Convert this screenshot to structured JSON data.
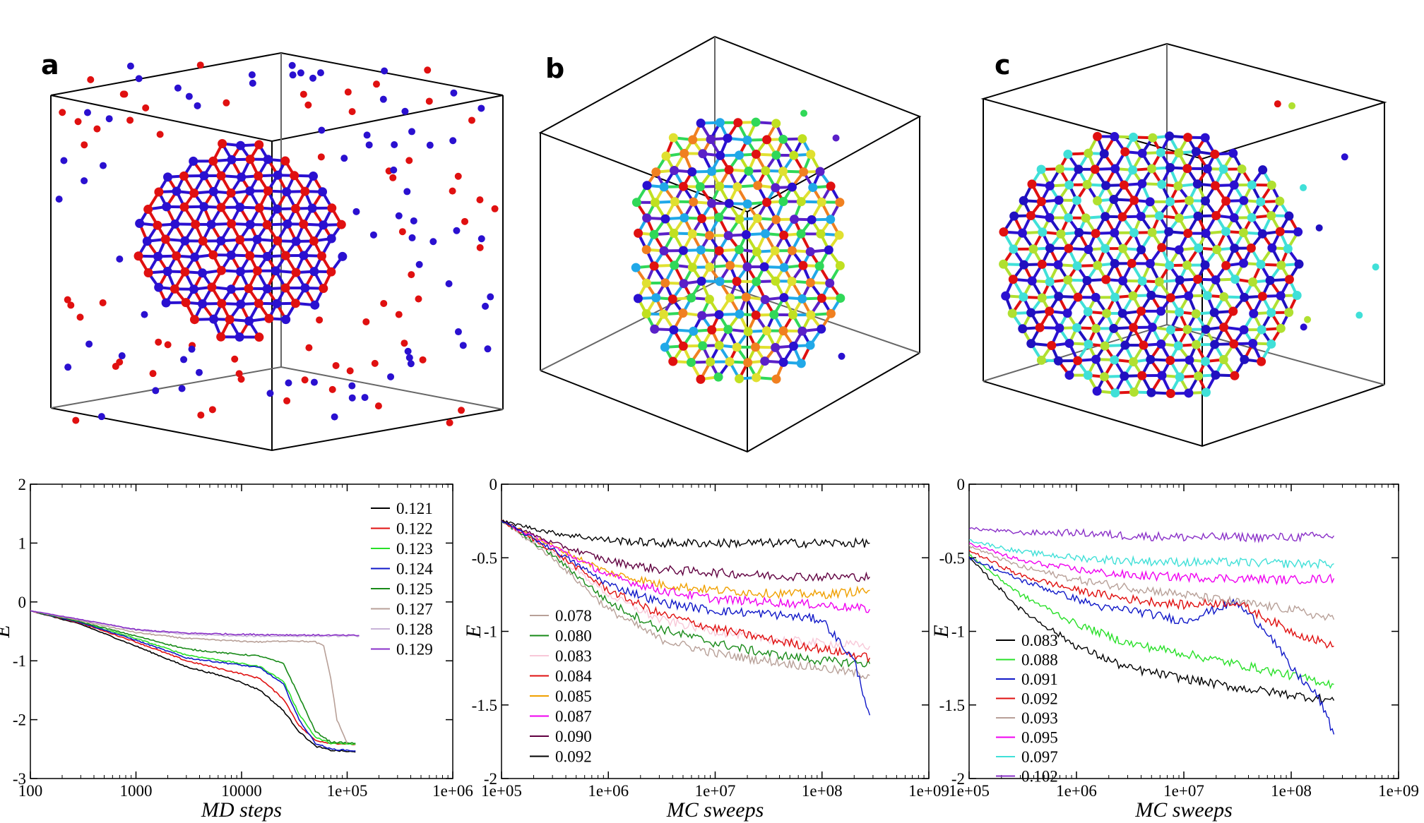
{
  "panel_labels": [
    "a",
    "b",
    "c"
  ],
  "colors": {
    "red": "#e01010",
    "blue": "#2a10d0",
    "green": "#28e028",
    "darkblue": "#1018c8",
    "darkgreen": "#188a18",
    "tan": "#b8a098",
    "lavender": "#c8b4d8",
    "purple": "#8a30c8",
    "black": "#000000",
    "orange": "#f0a000",
    "magenta": "#f000f0",
    "maroon": "#600040",
    "cyan": "#40e0d8",
    "pink": "#f8c8d8"
  },
  "chart_data": [
    {
      "type": "line",
      "xlabel": "MD steps",
      "ylabel": "E",
      "xscale": "log",
      "xlim": [
        100,
        1000000
      ],
      "ylim": [
        -3,
        2
      ],
      "xticks": [
        "100",
        "1000",
        "10000",
        "1e+05",
        "1e+06"
      ],
      "yticks": [
        "-3",
        "-2",
        "-1",
        "0",
        "1",
        "2"
      ],
      "legend_position": "top-right",
      "series": [
        {
          "name": "0.121",
          "color": "#000000",
          "x": [
            100,
            300,
            1000,
            3000,
            8000,
            15000,
            25000,
            35000,
            50000,
            70000,
            120000
          ],
          "y": [
            -0.15,
            -0.38,
            -0.75,
            -1.1,
            -1.3,
            -1.5,
            -1.85,
            -2.2,
            -2.45,
            -2.52,
            -2.55
          ]
        },
        {
          "name": "0.122",
          "color": "#e01010",
          "x": [
            100,
            300,
            1000,
            3000,
            8000,
            15000,
            25000,
            35000,
            50000,
            70000,
            120000
          ],
          "y": [
            -0.15,
            -0.36,
            -0.68,
            -1.0,
            -1.18,
            -1.3,
            -1.65,
            -2.1,
            -2.35,
            -2.4,
            -2.42
          ]
        },
        {
          "name": "0.123",
          "color": "#28e028",
          "x": [
            100,
            300,
            1000,
            3000,
            8000,
            15000,
            25000,
            35000,
            50000,
            70000,
            120000
          ],
          "y": [
            -0.15,
            -0.35,
            -0.62,
            -0.9,
            -1.02,
            -1.1,
            -1.35,
            -1.9,
            -2.3,
            -2.4,
            -2.42
          ]
        },
        {
          "name": "0.124",
          "color": "#1018c8",
          "x": [
            100,
            300,
            1000,
            3000,
            8000,
            15000,
            25000,
            35000,
            50000,
            70000,
            120000
          ],
          "y": [
            -0.15,
            -0.35,
            -0.65,
            -0.95,
            -1.05,
            -1.12,
            -1.4,
            -2.0,
            -2.4,
            -2.5,
            -2.53
          ]
        },
        {
          "name": "0.125",
          "color": "#188a18",
          "x": [
            100,
            300,
            1000,
            3000,
            8000,
            15000,
            25000,
            35000,
            50000,
            70000,
            120000
          ],
          "y": [
            -0.15,
            -0.34,
            -0.58,
            -0.8,
            -0.88,
            -0.92,
            -1.05,
            -1.6,
            -2.2,
            -2.38,
            -2.4
          ]
        },
        {
          "name": "0.127",
          "color": "#b8a098",
          "x": [
            100,
            300,
            1000,
            3000,
            8000,
            15000,
            30000,
            50000,
            60000,
            70000,
            80000,
            100000
          ],
          "y": [
            -0.15,
            -0.32,
            -0.52,
            -0.62,
            -0.66,
            -0.68,
            -0.66,
            -0.68,
            -0.75,
            -1.3,
            -2.0,
            -2.4
          ]
        },
        {
          "name": "0.128",
          "color": "#c8b4d8",
          "x": [
            100,
            300,
            1000,
            3000,
            10000,
            30000,
            130000
          ],
          "y": [
            -0.15,
            -0.3,
            -0.48,
            -0.55,
            -0.58,
            -0.58,
            -0.58
          ]
        },
        {
          "name": "0.129",
          "color": "#8a30c8",
          "x": [
            100,
            300,
            1000,
            3000,
            10000,
            30000,
            130000
          ],
          "y": [
            -0.15,
            -0.3,
            -0.47,
            -0.53,
            -0.55,
            -0.56,
            -0.57
          ]
        }
      ]
    },
    {
      "type": "line",
      "xlabel": "MC sweeps",
      "ylabel": "E",
      "xscale": "log",
      "xlim": [
        100000,
        1000000000
      ],
      "ylim": [
        -2,
        0
      ],
      "xticks": [
        "1e+05",
        "1e+06",
        "1e+07",
        "1e+08",
        "1e+09"
      ],
      "yticks": [
        "-2",
        "-1.5",
        "-1",
        "-0.5",
        "0"
      ],
      "legend_position": "bottom-left",
      "series": [
        {
          "name": "0.078",
          "color": "#b8a098",
          "x": [
            100000,
            300000,
            1000000,
            3000000,
            10000000,
            30000000,
            100000000,
            280000000
          ],
          "y": [
            -0.25,
            -0.5,
            -0.85,
            -1.05,
            -1.15,
            -1.2,
            -1.25,
            -1.3
          ]
        },
        {
          "name": "0.080",
          "color": "#188a18",
          "x": [
            100000,
            300000,
            1000000,
            3000000,
            10000000,
            30000000,
            100000000,
            280000000
          ],
          "y": [
            -0.25,
            -0.48,
            -0.8,
            -0.98,
            -1.08,
            -1.15,
            -1.2,
            -1.22
          ]
        },
        {
          "name": "0.083",
          "color": "#f8c8d8",
          "x": [
            100000,
            300000,
            1000000,
            3000000,
            10000000,
            30000000,
            100000000,
            280000000
          ],
          "y": [
            -0.25,
            -0.46,
            -0.75,
            -0.92,
            -1.0,
            -1.05,
            -1.08,
            -1.1
          ]
        },
        {
          "name": "0.084",
          "color": "#e01010",
          "x": [
            100000,
            300000,
            1000000,
            3000000,
            10000000,
            30000000,
            100000000,
            280000000
          ],
          "y": [
            -0.25,
            -0.45,
            -0.72,
            -0.88,
            -0.98,
            -1.05,
            -1.12,
            -1.18
          ]
        },
        {
          "name": "0.085",
          "color": "#f0a000",
          "x": [
            100000,
            300000,
            1000000,
            3000000,
            10000000,
            30000000,
            100000000,
            280000000
          ],
          "y": [
            -0.25,
            -0.42,
            -0.6,
            -0.68,
            -0.72,
            -0.74,
            -0.75,
            -0.72
          ]
        },
        {
          "name": "0.087",
          "color": "#f000f0",
          "x": [
            100000,
            300000,
            1000000,
            3000000,
            10000000,
            30000000,
            100000000,
            280000000
          ],
          "y": [
            -0.25,
            -0.42,
            -0.62,
            -0.72,
            -0.78,
            -0.8,
            -0.82,
            -0.85
          ]
        },
        {
          "name": "0.090",
          "color": "#600040",
          "x": [
            100000,
            300000,
            1000000,
            3000000,
            10000000,
            30000000,
            100000000,
            280000000
          ],
          "y": [
            -0.25,
            -0.4,
            -0.52,
            -0.58,
            -0.6,
            -0.62,
            -0.63,
            -0.63
          ]
        },
        {
          "name": "0.092",
          "color": "#000000",
          "x": [
            100000,
            300000,
            1000000,
            3000000,
            10000000,
            30000000,
            100000000,
            280000000
          ],
          "y": [
            -0.25,
            -0.33,
            -0.38,
            -0.4,
            -0.4,
            -0.4,
            -0.4,
            -0.4
          ]
        },
        {
          "name": "",
          "color": "#1018c8",
          "x": [
            100000,
            300000,
            1000000,
            3000000,
            10000000,
            30000000,
            100000000,
            200000000,
            280000000
          ],
          "y": [
            -0.25,
            -0.44,
            -0.68,
            -0.8,
            -0.86,
            -0.88,
            -0.92,
            -1.2,
            -1.57
          ]
        }
      ]
    },
    {
      "type": "line",
      "xlabel": "MC sweeps",
      "ylabel": "E",
      "xscale": "log",
      "xlim": [
        100000,
        1000000000
      ],
      "ylim": [
        -2,
        0
      ],
      "xticks": [
        "1e+05",
        "1e+06",
        "1e+07",
        "1e+08",
        "1e+09"
      ],
      "yticks": [
        "-2",
        "-1.5",
        "-1",
        "-0.5",
        "0"
      ],
      "legend_position": "bottom-left",
      "series": [
        {
          "name": "0.083",
          "color": "#000000",
          "x": [
            100000,
            300000,
            1000000,
            3000000,
            10000000,
            30000000,
            100000000,
            250000000
          ],
          "y": [
            -0.5,
            -0.85,
            -1.1,
            -1.25,
            -1.32,
            -1.38,
            -1.43,
            -1.47
          ]
        },
        {
          "name": "0.088",
          "color": "#28e028",
          "x": [
            100000,
            300000,
            1000000,
            3000000,
            10000000,
            30000000,
            100000000,
            250000000
          ],
          "y": [
            -0.48,
            -0.75,
            -0.95,
            -1.08,
            -1.15,
            -1.22,
            -1.3,
            -1.36
          ]
        },
        {
          "name": "0.091",
          "color": "#1018c8",
          "x": [
            100000,
            300000,
            1000000,
            2000000,
            3000000,
            10000000,
            30000000,
            60000000,
            100000000,
            180000000,
            250000000
          ],
          "y": [
            -0.5,
            -0.65,
            -0.78,
            -0.85,
            -0.85,
            -0.93,
            -0.8,
            -1.0,
            -1.25,
            -1.45,
            -1.7
          ]
        },
        {
          "name": "0.092",
          "color": "#e01010",
          "x": [
            100000,
            300000,
            1000000,
            3000000,
            10000000,
            30000000,
            100000000,
            250000000
          ],
          "y": [
            -0.45,
            -0.62,
            -0.72,
            -0.78,
            -0.82,
            -0.8,
            -1.0,
            -1.1
          ]
        },
        {
          "name": "0.093",
          "color": "#b8a098",
          "x": [
            100000,
            300000,
            1000000,
            3000000,
            10000000,
            30000000,
            100000000,
            250000000
          ],
          "y": [
            -0.42,
            -0.56,
            -0.65,
            -0.7,
            -0.75,
            -0.8,
            -0.85,
            -0.92
          ]
        },
        {
          "name": "0.095",
          "color": "#f000f0",
          "x": [
            100000,
            300000,
            1000000,
            3000000,
            10000000,
            30000000,
            100000000,
            250000000
          ],
          "y": [
            -0.4,
            -0.52,
            -0.58,
            -0.62,
            -0.63,
            -0.64,
            -0.65,
            -0.64
          ]
        },
        {
          "name": "0.097",
          "color": "#40e0d8",
          "x": [
            100000,
            300000,
            1000000,
            3000000,
            10000000,
            30000000,
            100000000,
            250000000
          ],
          "y": [
            -0.38,
            -0.46,
            -0.5,
            -0.52,
            -0.53,
            -0.53,
            -0.54,
            -0.54
          ]
        },
        {
          "name": "0.102",
          "color": "#8a30c8",
          "x": [
            100000,
            300000,
            1000000,
            3000000,
            10000000,
            30000000,
            100000000,
            250000000
          ],
          "y": [
            -0.3,
            -0.33,
            -0.33,
            -0.35,
            -0.36,
            -0.36,
            -0.36,
            -0.35
          ]
        }
      ]
    }
  ]
}
